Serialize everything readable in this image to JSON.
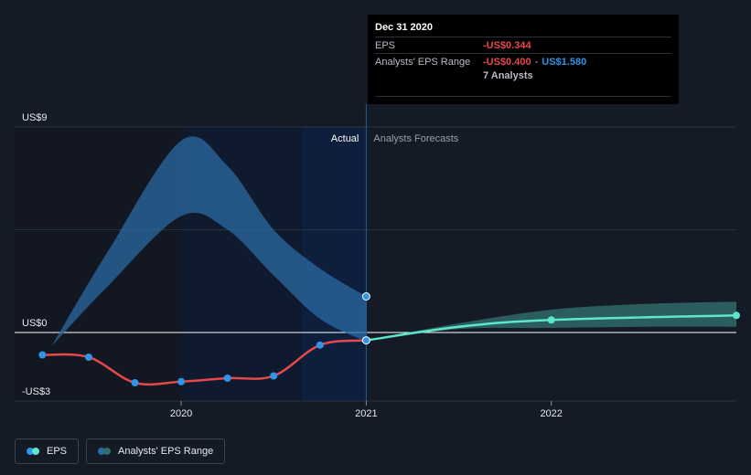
{
  "chart_data": {
    "type": "line",
    "y_ticks": [
      {
        "label": "US$9",
        "value": 9
      },
      {
        "label": "US$0",
        "value": 0
      },
      {
        "label": "-US$3",
        "value": -3
      }
    ],
    "ylim": [
      -3,
      9
    ],
    "x_ticks": [
      {
        "label": "2020",
        "value": 2020.0
      },
      {
        "label": "2021",
        "value": 2021.0
      },
      {
        "label": "2022",
        "value": 2022.0
      }
    ],
    "xlim": [
      2019.1,
      2023.0
    ],
    "divider_x": 2021.0,
    "actual_label": "Actual",
    "forecast_label": "Analysts Forecasts",
    "series": [
      {
        "name": "EPS",
        "color_actual": "#e5484d",
        "color_forecast": "#5ee6cc",
        "points": [
          {
            "x": 2019.25,
            "y": -0.98,
            "marker": true
          },
          {
            "x": 2019.5,
            "y": -1.08,
            "marker": true
          },
          {
            "x": 2019.75,
            "y": -2.2,
            "marker": true
          },
          {
            "x": 2020.0,
            "y": -2.15,
            "marker": true
          },
          {
            "x": 2020.25,
            "y": -2.0,
            "marker": true
          },
          {
            "x": 2020.5,
            "y": -1.9,
            "marker": true
          },
          {
            "x": 2020.75,
            "y": -0.55,
            "marker": true
          },
          {
            "x": 2021.0,
            "y": -0.344,
            "marker": true
          },
          {
            "x": 2021.5,
            "y": 0.25,
            "marker": false
          },
          {
            "x": 2022.0,
            "y": 0.55,
            "marker": true
          },
          {
            "x": 2023.0,
            "y": 0.75,
            "marker": true
          }
        ]
      },
      {
        "name": "Analysts' EPS Range",
        "color": "#2b6aa3",
        "upper": [
          {
            "x": 2019.3,
            "y": -0.6
          },
          {
            "x": 2019.6,
            "y": 3.5
          },
          {
            "x": 2020.0,
            "y": 8.4
          },
          {
            "x": 2020.25,
            "y": 7.3
          },
          {
            "x": 2020.5,
            "y": 4.5
          },
          {
            "x": 2020.75,
            "y": 2.8
          },
          {
            "x": 2021.0,
            "y": 1.58
          }
        ],
        "lower": [
          {
            "x": 2019.3,
            "y": -0.6
          },
          {
            "x": 2019.6,
            "y": 2.0
          },
          {
            "x": 2020.0,
            "y": 5.1
          },
          {
            "x": 2020.25,
            "y": 4.5
          },
          {
            "x": 2020.5,
            "y": 2.5
          },
          {
            "x": 2020.75,
            "y": 0.6
          },
          {
            "x": 2021.0,
            "y": -0.4
          }
        ],
        "forecast_upper": [
          {
            "x": 2021.0,
            "y": -0.344
          },
          {
            "x": 2021.5,
            "y": 0.4
          },
          {
            "x": 2022.0,
            "y": 1.0
          },
          {
            "x": 2022.5,
            "y": 1.25
          },
          {
            "x": 2023.0,
            "y": 1.35
          }
        ],
        "forecast_lower": [
          {
            "x": 2021.0,
            "y": -0.344
          },
          {
            "x": 2021.5,
            "y": 0.15
          },
          {
            "x": 2022.0,
            "y": 0.2
          },
          {
            "x": 2022.5,
            "y": 0.25
          },
          {
            "x": 2023.0,
            "y": 0.25
          }
        ]
      }
    ],
    "highlight_x": 2021.0,
    "highlight_points": [
      {
        "x": 2021.0,
        "y": 1.58
      },
      {
        "x": 2021.0,
        "y": -0.344
      }
    ]
  },
  "tooltip": {
    "date": "Dec 31 2020",
    "eps_label": "EPS",
    "eps_value": "-US$0.344",
    "range_label": "Analysts' EPS Range",
    "range_low": "-US$0.400",
    "range_sep": "-",
    "range_high": "US$1.580",
    "analysts": "7 Analysts"
  },
  "legend": {
    "eps_label": "EPS",
    "range_label": "Analysts' EPS Range"
  },
  "colors": {
    "background": "#151b26",
    "eps_actual": "#e5484d",
    "eps_forecast": "#5ee6cc",
    "range_actual": "#2b6aa3",
    "range_forecast": "#2f6e6a",
    "marker": "#2f95e6"
  }
}
